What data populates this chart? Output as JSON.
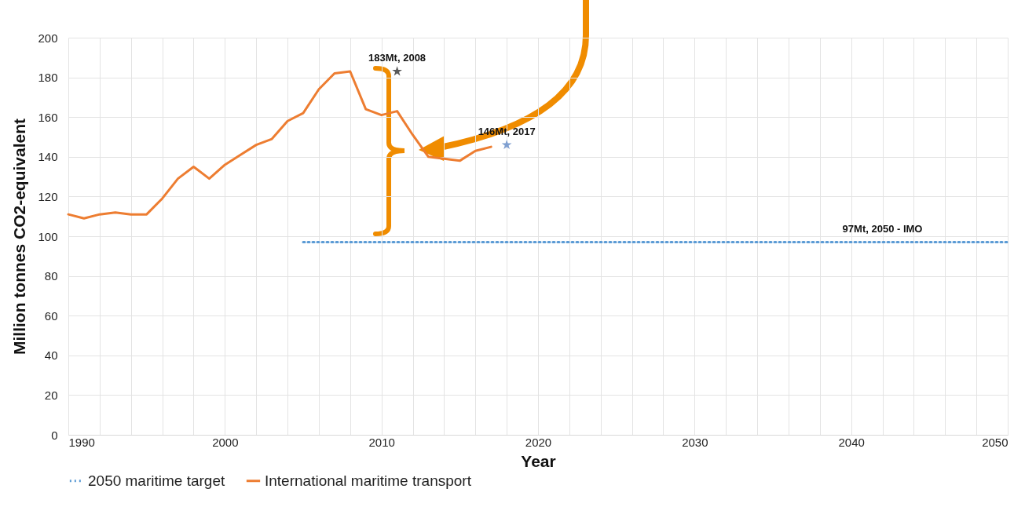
{
  "chart_data": {
    "type": "line",
    "xlabel": "Year",
    "ylabel": "Million tonnes CO2-equivalent",
    "xlim": [
      1990,
      2050
    ],
    "ylim": [
      0,
      200
    ],
    "xticks": [
      1990,
      {
        "value": 1992,
        "label": null
      },
      {
        "value": 1994,
        "label": null
      },
      {
        "value": 1996,
        "label": null
      },
      {
        "value": 1998,
        "label": null
      },
      2000,
      {
        "value": 2002,
        "label": null
      },
      {
        "value": 2004,
        "label": null
      },
      {
        "value": 2006,
        "label": null
      },
      {
        "value": 2008,
        "label": null
      },
      2010,
      {
        "value": 2012,
        "label": null
      },
      {
        "value": 2014,
        "label": null
      },
      {
        "value": 2016,
        "label": null
      },
      {
        "value": 2018,
        "label": null
      },
      2020,
      {
        "value": 2022,
        "label": null
      },
      {
        "value": 2024,
        "label": null
      },
      {
        "value": 2026,
        "label": null
      },
      {
        "value": 2028,
        "label": null
      },
      2030,
      {
        "value": 2032,
        "label": null
      },
      {
        "value": 2034,
        "label": null
      },
      {
        "value": 2036,
        "label": null
      },
      {
        "value": 2038,
        "label": null
      },
      2040,
      {
        "value": 2042,
        "label": null
      },
      {
        "value": 2044,
        "label": null
      },
      {
        "value": 2046,
        "label": null
      },
      {
        "value": 2048,
        "label": null
      },
      2050
    ],
    "yticks": [
      0,
      20,
      40,
      60,
      80,
      100,
      120,
      140,
      160,
      180,
      200
    ],
    "grid": true,
    "legend": "bottom",
    "series": [
      {
        "name": "2050 maritime target",
        "color": "#5b9bd5",
        "line_style": "dotted",
        "x": [
          2005,
          2050
        ],
        "values": [
          97,
          97
        ]
      },
      {
        "name": "International maritime transport",
        "color": "#ed7d31",
        "line_style": "solid",
        "x": [
          1990,
          1991,
          1992,
          1993,
          1994,
          1995,
          1996,
          1997,
          1998,
          1999,
          2000,
          2001,
          2002,
          2003,
          2004,
          2005,
          2006,
          2007,
          2008,
          2009,
          2010,
          2011,
          2012,
          2013,
          2014,
          2015,
          2016,
          2017
        ],
        "values": [
          111,
          109,
          111,
          112,
          111,
          111,
          119,
          129,
          135,
          129,
          136,
          141,
          146,
          149,
          158,
          162,
          174,
          182,
          183,
          164,
          161,
          163,
          151,
          140,
          139,
          138,
          143,
          145
        ]
      },
      {
        "type": "scatter",
        "marker": "star",
        "color": "#595959",
        "x": [
          2011
        ],
        "values": [
          183
        ]
      },
      {
        "type": "scatter",
        "marker": "star",
        "color": "#7f9fd0",
        "x": [
          2018
        ],
        "values": [
          146
        ]
      }
    ],
    "annotations": [
      {
        "text": "183Mt, 2008",
        "x": 2011,
        "y": 183
      },
      {
        "text": "146Mt, 2017",
        "x": 2018,
        "y": 146
      },
      {
        "text": "97Mt, 2050 - IMO",
        "x": 2042,
        "y": 97
      }
    ]
  }
}
